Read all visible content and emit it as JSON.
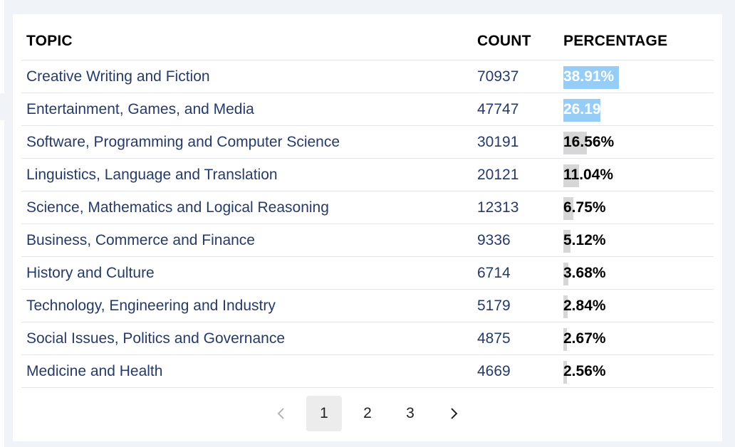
{
  "table": {
    "headers": {
      "topic": "TOPIC",
      "count": "COUNT",
      "percentage": "PERCENTAGE"
    },
    "rows": [
      {
        "topic": "Creative Writing and Fiction",
        "count": "70937",
        "percentage": "38.91%",
        "fraction": 0.3891,
        "highlight": true
      },
      {
        "topic": "Entertainment, Games, and Media",
        "count": "47747",
        "percentage": "26.19%",
        "fraction": 0.2619,
        "highlight": true
      },
      {
        "topic": "Software, Programming and Computer Science",
        "count": "30191",
        "percentage": "16.56%",
        "fraction": 0.1656,
        "highlight": false
      },
      {
        "topic": "Linguistics, Language and Translation",
        "count": "20121",
        "percentage": "11.04%",
        "fraction": 0.1104,
        "highlight": false
      },
      {
        "topic": "Science, Mathematics and Logical Reasoning",
        "count": "12313",
        "percentage": "6.75%",
        "fraction": 0.0675,
        "highlight": false
      },
      {
        "topic": "Business, Commerce and Finance",
        "count": "9336",
        "percentage": "5.12%",
        "fraction": 0.0512,
        "highlight": false
      },
      {
        "topic": "History and Culture",
        "count": "6714",
        "percentage": "3.68%",
        "fraction": 0.0368,
        "highlight": false
      },
      {
        "topic": "Technology, Engineering and Industry",
        "count": "5179",
        "percentage": "2.84%",
        "fraction": 0.0284,
        "highlight": false
      },
      {
        "topic": "Social Issues, Politics and Governance",
        "count": "4875",
        "percentage": "2.67%",
        "fraction": 0.0267,
        "highlight": false
      },
      {
        "topic": "Medicine and Health",
        "count": "4669",
        "percentage": "2.56%",
        "fraction": 0.0256,
        "highlight": false
      }
    ]
  },
  "pagination": {
    "prev_icon": "chevron-left-icon",
    "next_icon": "chevron-right-icon",
    "pages": [
      "1",
      "2",
      "3"
    ],
    "current": "1"
  },
  "colors": {
    "highlight_bar": "#95cdf7",
    "default_bar": "#d6d6d6",
    "topic_text": "#253a6b"
  }
}
